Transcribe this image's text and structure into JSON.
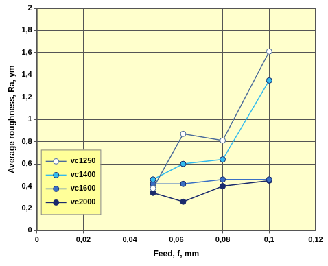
{
  "chart_data": {
    "type": "line",
    "x_label": "Feed, f, mm",
    "y_label": "Average roughness, Ra, ym",
    "x": [
      0.05,
      0.063,
      0.08,
      0.1
    ],
    "series": [
      {
        "name": "vc1250",
        "color": "#4a6a9a",
        "marker": "circle_open",
        "values": [
          0.38,
          0.87,
          0.81,
          1.61
        ]
      },
      {
        "name": "vc1400",
        "color": "#33bbee",
        "marker": "circle",
        "values": [
          0.46,
          0.6,
          0.64,
          1.35
        ]
      },
      {
        "name": "vc1600",
        "color": "#3a6fc4",
        "marker": "circle",
        "values": [
          0.42,
          0.42,
          0.46,
          0.46
        ]
      },
      {
        "name": "vc2000",
        "color": "#1a2a6c",
        "marker": "circle",
        "values": [
          0.34,
          0.26,
          0.4,
          0.45
        ]
      }
    ],
    "xlim": [
      0,
      0.12
    ],
    "xticks": [
      0,
      {
        "value": 0.02,
        "label": "0,02"
      },
      {
        "value": 0.04,
        "label": "0,04"
      },
      {
        "value": 0.06,
        "label": "0,06"
      },
      {
        "value": 0.08,
        "label": "0,08"
      },
      {
        "value": 0.1,
        "label": "0,1"
      },
      {
        "value": 0.12,
        "label": "0,12"
      }
    ],
    "ylim": [
      0,
      2
    ],
    "yticks": [
      0,
      {
        "value": 0.2,
        "label": "0,2"
      },
      {
        "value": 0.4,
        "label": "0,4"
      },
      {
        "value": 0.6,
        "label": "0,6"
      },
      {
        "value": 0.8,
        "label": "0,8"
      },
      1,
      {
        "value": 1.2,
        "label": "1,2"
      },
      {
        "value": 1.4,
        "label": "1,4"
      },
      {
        "value": 1.6,
        "label": "1,6"
      },
      {
        "value": 1.8,
        "label": "1,8"
      },
      2
    ],
    "grid": true,
    "legend": "lower left"
  }
}
